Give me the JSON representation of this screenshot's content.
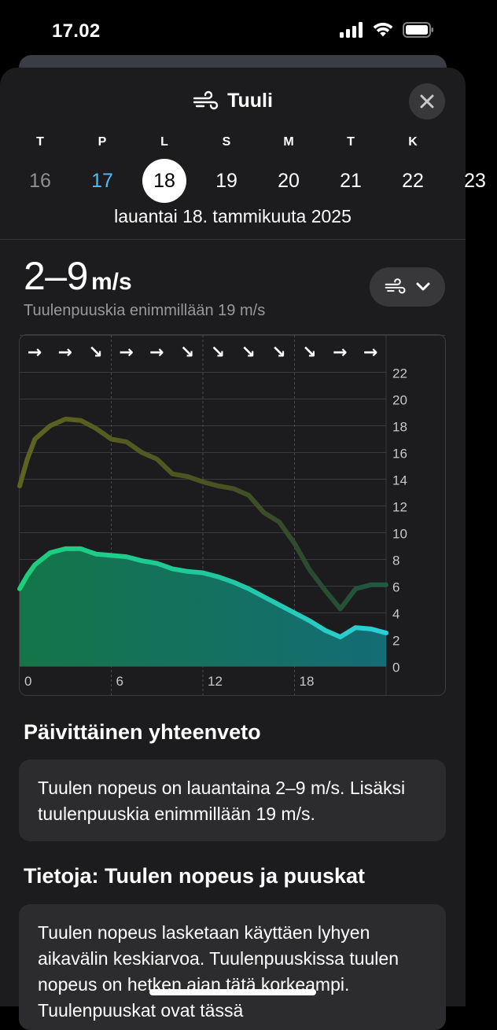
{
  "status_bar": {
    "time": "17.02"
  },
  "sheet": {
    "title": "Tuuli",
    "close_label": "×"
  },
  "calendar": {
    "weekdays": [
      "T",
      "P",
      "L",
      "S",
      "M",
      "T",
      "K"
    ],
    "dates": [
      {
        "day": "16",
        "state": "past"
      },
      {
        "day": "17",
        "state": "today"
      },
      {
        "day": "18",
        "state": "selected"
      },
      {
        "day": "19",
        "state": "future"
      },
      {
        "day": "20",
        "state": "future"
      },
      {
        "day": "21",
        "state": "future"
      },
      {
        "day": "22",
        "state": "future"
      },
      {
        "day": "23",
        "state": "future"
      }
    ],
    "full_date": "lauantai 18. tammikuuta 2025"
  },
  "summary": {
    "range": "2–9",
    "unit": "m/s",
    "gust_text": "Tuulenpuuskia enimmillään 19 m/s"
  },
  "chart_data": {
    "type": "area",
    "x_ticks": [
      "0",
      "6",
      "12",
      "18"
    ],
    "y_ticks": [
      "22",
      "20",
      "18",
      "16",
      "14",
      "12",
      "10",
      "8",
      "6",
      "4",
      "2",
      "0"
    ],
    "ylim": [
      0,
      22
    ],
    "xlim": [
      0,
      24
    ],
    "wind_directions": [
      "→",
      "→",
      "↘",
      "→",
      "→",
      "↘",
      "↘",
      "↘",
      "↘",
      "↘",
      "→",
      "→"
    ],
    "series": [
      {
        "role": "gusts",
        "x": [
          0,
          0.5,
          1,
          2,
          3,
          4,
          5,
          6,
          7,
          8,
          9,
          10,
          11,
          12,
          13,
          14,
          15,
          16,
          17,
          18,
          19,
          20,
          21,
          22,
          23,
          24
        ],
        "values": [
          13.5,
          15.5,
          17,
          18,
          18.5,
          18.4,
          17.8,
          17,
          16.8,
          16,
          15.5,
          14.4,
          14.2,
          13.8,
          13.5,
          13.3,
          12.8,
          11.5,
          10.8,
          9.2,
          7.2,
          5.7,
          4.3,
          5.8,
          6.1,
          6.1
        ],
        "color": "#5a5f1c"
      },
      {
        "role": "wind",
        "x": [
          0,
          0.5,
          1,
          2,
          3,
          4,
          5,
          6,
          7,
          8,
          9,
          10,
          11,
          12,
          13,
          14,
          15,
          16,
          17,
          18,
          19,
          20,
          21,
          22,
          23,
          24
        ],
        "values": [
          5.8,
          6.8,
          7.6,
          8.5,
          8.8,
          8.8,
          8.4,
          8.3,
          8.2,
          7.9,
          7.7,
          7.3,
          7.1,
          7.0,
          6.7,
          6.3,
          5.8,
          5.2,
          4.6,
          4.0,
          3.4,
          2.7,
          2.2,
          2.9,
          2.8,
          2.5
        ],
        "color": "#22c87a"
      }
    ],
    "grid": true
  },
  "daily_summary": {
    "heading": "Päivittäinen yhteenveto",
    "text": "Tuulen nopeus on lauantaina 2–9 m/s. Lisäksi tuulenpuuskia enimmillään 19 m/s."
  },
  "info": {
    "heading": "Tietoja: Tuulen nopeus ja puuskat",
    "text": "Tuulen nopeus lasketaan käyttäen lyhyen aikavälin keskiarvoa. Tuulenpuuskissa tuulen nopeus on hetken ajan tätä korkeampi. Tuulenpuuskat ovat tässä"
  }
}
